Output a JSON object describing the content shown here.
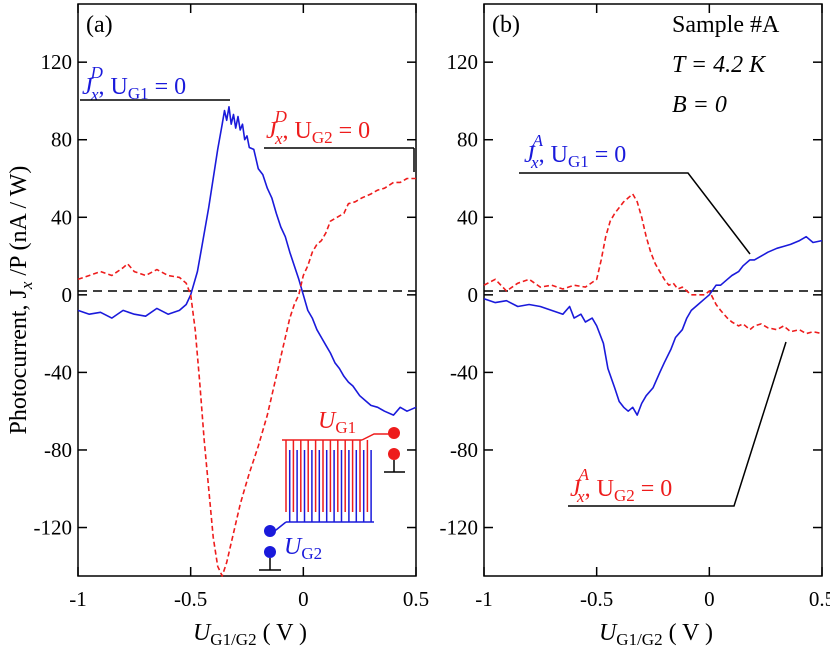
{
  "colors": {
    "blue": "#1a1adb",
    "red": "#ee1c1c",
    "black": "#000000"
  },
  "axes": {
    "ylabel": "Photocurrent, J",
    "ylabel_sub": "x",
    "ylabel_tail": " /P (nA / W)",
    "xlabel_main": "U",
    "xlabel_sub": "G1/G2",
    "xlabel_unit": " ( V )",
    "yticks": [
      "120",
      "80",
      "40",
      "0",
      "-40",
      "-80",
      "-120"
    ],
    "xticks": [
      "-1",
      "-0.5",
      "0",
      "0.5"
    ]
  },
  "panels": [
    {
      "tag": "(a)",
      "label_blue": {
        "main": "J",
        "sub": "x",
        "sup": "D",
        "tail": ", U",
        "tail_sub": "G1",
        "tail_end": " = 0"
      },
      "label_red": {
        "main": "J",
        "sub": "x",
        "sup": "D",
        "tail": ", U",
        "tail_sub": "G2",
        "tail_end": " = 0"
      },
      "inset": {
        "g1_main": "U",
        "g1_sub": "G1",
        "g2_main": "U",
        "g2_sub": "G2"
      }
    },
    {
      "tag": "(b)",
      "info": [
        "Sample #A",
        "T = 4.2 K",
        "B = 0"
      ],
      "label_blue": {
        "main": "J",
        "sub": "x",
        "sup": "A",
        "tail": ",  U",
        "tail_sub": "G1",
        "tail_end": " = 0"
      },
      "label_red": {
        "main": "J",
        "sub": "x",
        "sup": "A",
        "tail": ", U",
        "tail_sub": "G2",
        "tail_end": " = 0"
      }
    }
  ],
  "chart_data": [
    {
      "type": "line",
      "panel": "(a)",
      "xlabel": "U_G1/G2 ( V )",
      "ylabel": "Photocurrent, J_x /P (nA / W)",
      "xlim": [
        -1,
        0.5
      ],
      "ylim": [
        -145,
        150
      ],
      "series": [
        {
          "name": "J_x^D, U_G1 = 0",
          "color": "#1a1adb",
          "style": "solid",
          "x": [
            -1.0,
            -0.95,
            -0.9,
            -0.85,
            -0.8,
            -0.75,
            -0.7,
            -0.65,
            -0.6,
            -0.55,
            -0.52,
            -0.5,
            -0.47,
            -0.45,
            -0.42,
            -0.4,
            -0.38,
            -0.36,
            -0.35,
            -0.34,
            -0.33,
            -0.32,
            -0.31,
            -0.3,
            -0.29,
            -0.28,
            -0.27,
            -0.26,
            -0.25,
            -0.24,
            -0.22,
            -0.2,
            -0.18,
            -0.16,
            -0.14,
            -0.12,
            -0.1,
            -0.08,
            -0.06,
            -0.04,
            -0.02,
            0.0,
            0.02,
            0.04,
            0.06,
            0.08,
            0.1,
            0.12,
            0.14,
            0.16,
            0.18,
            0.2,
            0.22,
            0.25,
            0.28,
            0.3,
            0.33,
            0.36,
            0.4,
            0.43,
            0.46,
            0.5
          ],
          "y": [
            -8,
            -10,
            -9,
            -12,
            -8,
            -10,
            -11,
            -7,
            -10,
            -8,
            -5,
            0,
            12,
            25,
            45,
            60,
            75,
            88,
            95,
            90,
            97,
            88,
            93,
            86,
            92,
            85,
            88,
            80,
            82,
            76,
            75,
            65,
            62,
            55,
            50,
            42,
            35,
            30,
            22,
            15,
            8,
            0,
            -8,
            -12,
            -18,
            -22,
            -26,
            -30,
            -35,
            -38,
            -42,
            -45,
            -47,
            -52,
            -55,
            -57,
            -58,
            -60,
            -62,
            -58,
            -60,
            -58
          ]
        },
        {
          "name": "J_x^D, U_G2 = 0",
          "color": "#ee1c1c",
          "style": "dashed",
          "x": [
            -1.0,
            -0.95,
            -0.9,
            -0.85,
            -0.8,
            -0.78,
            -0.75,
            -0.7,
            -0.65,
            -0.6,
            -0.55,
            -0.52,
            -0.5,
            -0.48,
            -0.46,
            -0.44,
            -0.42,
            -0.4,
            -0.38,
            -0.36,
            -0.34,
            -0.32,
            -0.3,
            -0.28,
            -0.26,
            -0.24,
            -0.22,
            -0.2,
            -0.18,
            -0.16,
            -0.14,
            -0.12,
            -0.1,
            -0.08,
            -0.06,
            -0.04,
            -0.02,
            0.0,
            0.02,
            0.04,
            0.06,
            0.08,
            0.1,
            0.12,
            0.15,
            0.18,
            0.2,
            0.23,
            0.26,
            0.3,
            0.33,
            0.36,
            0.4,
            0.43,
            0.46,
            0.5
          ],
          "y": [
            8,
            10,
            12,
            10,
            14,
            16,
            12,
            10,
            13,
            10,
            9,
            6,
            0,
            -18,
            -45,
            -75,
            -100,
            -125,
            -140,
            -145,
            -138,
            -128,
            -118,
            -108,
            -100,
            -92,
            -85,
            -78,
            -70,
            -62,
            -52,
            -42,
            -32,
            -22,
            -12,
            -5,
            0,
            10,
            15,
            22,
            26,
            28,
            32,
            38,
            40,
            42,
            47,
            48,
            50,
            52,
            54,
            55,
            58,
            58,
            60,
            60
          ]
        }
      ]
    },
    {
      "type": "line",
      "panel": "(b)",
      "xlabel": "U_G1/G2 ( V )",
      "xlim": [
        -1,
        0.5
      ],
      "ylim": [
        -145,
        150
      ],
      "series": [
        {
          "name": "J_x^A, U_G1 = 0",
          "color": "#1a1adb",
          "style": "solid",
          "x": [
            -1.0,
            -0.95,
            -0.9,
            -0.85,
            -0.8,
            -0.75,
            -0.7,
            -0.65,
            -0.62,
            -0.6,
            -0.57,
            -0.55,
            -0.52,
            -0.5,
            -0.47,
            -0.45,
            -0.42,
            -0.4,
            -0.38,
            -0.36,
            -0.34,
            -0.32,
            -0.3,
            -0.28,
            -0.25,
            -0.22,
            -0.2,
            -0.17,
            -0.15,
            -0.12,
            -0.1,
            -0.08,
            -0.05,
            -0.02,
            0.0,
            0.03,
            0.05,
            0.08,
            0.1,
            0.13,
            0.15,
            0.18,
            0.2,
            0.23,
            0.26,
            0.3,
            0.33,
            0.36,
            0.4,
            0.43,
            0.46,
            0.5
          ],
          "y": [
            -2,
            -4,
            -3,
            -6,
            -5,
            -6,
            -8,
            -10,
            -6,
            -12,
            -10,
            -14,
            -12,
            -16,
            -25,
            -38,
            -48,
            -55,
            -58,
            -60,
            -58,
            -62,
            -56,
            -52,
            -48,
            -40,
            -35,
            -28,
            -22,
            -18,
            -12,
            -8,
            -5,
            -2,
            0,
            5,
            5,
            8,
            10,
            12,
            15,
            18,
            18,
            20,
            22,
            24,
            25,
            26,
            28,
            30,
            27,
            28
          ]
        },
        {
          "name": "J_x^A, U_G2 = 0",
          "color": "#ee1c1c",
          "style": "dashed",
          "x": [
            -1.0,
            -0.95,
            -0.9,
            -0.85,
            -0.8,
            -0.75,
            -0.7,
            -0.65,
            -0.6,
            -0.55,
            -0.5,
            -0.48,
            -0.46,
            -0.44,
            -0.42,
            -0.4,
            -0.38,
            -0.36,
            -0.34,
            -0.32,
            -0.3,
            -0.28,
            -0.26,
            -0.24,
            -0.22,
            -0.2,
            -0.18,
            -0.16,
            -0.14,
            -0.12,
            -0.1,
            -0.08,
            -0.05,
            -0.02,
            0.0,
            0.03,
            0.05,
            0.08,
            0.1,
            0.13,
            0.15,
            0.18,
            0.2,
            0.23,
            0.26,
            0.3,
            0.33,
            0.36,
            0.4,
            0.43,
            0.46,
            0.5
          ],
          "y": [
            5,
            8,
            2,
            6,
            8,
            4,
            5,
            3,
            5,
            4,
            8,
            18,
            30,
            38,
            42,
            45,
            48,
            50,
            52,
            48,
            40,
            30,
            22,
            16,
            12,
            8,
            5,
            6,
            3,
            4,
            2,
            0,
            0,
            0,
            2,
            -5,
            -8,
            -12,
            -14,
            -16,
            -15,
            -18,
            -16,
            -15,
            -17,
            -18,
            -16,
            -19,
            -18,
            -20,
            -19,
            -20
          ]
        }
      ]
    }
  ]
}
